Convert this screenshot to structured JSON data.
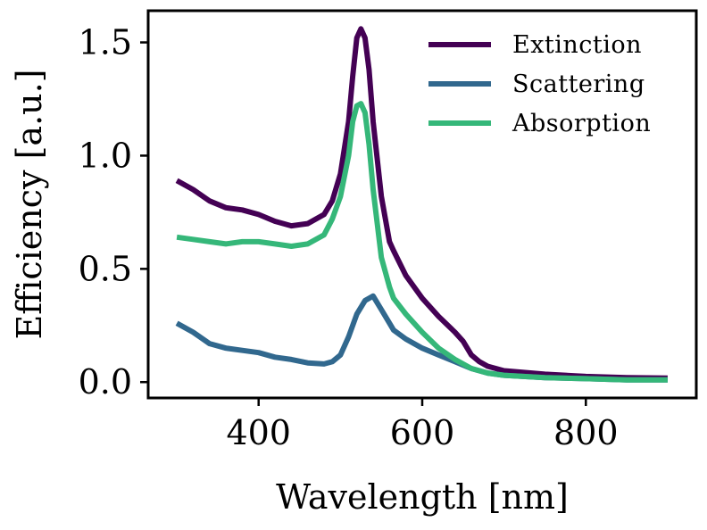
{
  "chart_data": {
    "type": "line",
    "title": "",
    "xlabel": "Wavelength [nm]",
    "ylabel": "Efficiency [a.u.]",
    "xlim": [
      265,
      935
    ],
    "ylim": [
      -0.07,
      1.64
    ],
    "xticks": [
      400,
      600,
      800
    ],
    "yticks": [
      0.0,
      0.5,
      1.0,
      1.5
    ],
    "xtick_labels": [
      "400",
      "600",
      "800"
    ],
    "ytick_labels": [
      "0.0",
      "0.5",
      "1.0",
      "1.5"
    ],
    "grid": false,
    "legend": {
      "position": "top-right",
      "frame": false
    },
    "series": [
      {
        "name": "Extinction",
        "color": "#440154",
        "x": [
          300,
          320,
          340,
          360,
          380,
          400,
          420,
          440,
          460,
          480,
          490,
          500,
          510,
          515,
          520,
          525,
          530,
          535,
          540,
          550,
          560,
          565,
          580,
          600,
          620,
          640,
          650,
          660,
          670,
          680,
          700,
          750,
          800,
          850,
          900
        ],
        "y": [
          0.89,
          0.85,
          0.8,
          0.77,
          0.76,
          0.74,
          0.71,
          0.69,
          0.7,
          0.74,
          0.8,
          0.92,
          1.15,
          1.35,
          1.52,
          1.56,
          1.52,
          1.38,
          1.15,
          0.82,
          0.62,
          0.58,
          0.47,
          0.37,
          0.29,
          0.22,
          0.18,
          0.12,
          0.09,
          0.07,
          0.05,
          0.035,
          0.025,
          0.02,
          0.018
        ]
      },
      {
        "name": "Scattering",
        "color": "#31688e",
        "x": [
          300,
          320,
          340,
          360,
          380,
          400,
          420,
          440,
          460,
          480,
          490,
          500,
          510,
          520,
          530,
          540,
          550,
          560,
          565,
          580,
          600,
          620,
          640,
          660,
          680,
          700,
          750,
          800,
          850,
          900
        ],
        "y": [
          0.26,
          0.22,
          0.17,
          0.15,
          0.14,
          0.13,
          0.11,
          0.1,
          0.085,
          0.08,
          0.09,
          0.12,
          0.2,
          0.3,
          0.36,
          0.38,
          0.32,
          0.26,
          0.23,
          0.19,
          0.15,
          0.12,
          0.09,
          0.06,
          0.04,
          0.03,
          0.02,
          0.015,
          0.01,
          0.01
        ]
      },
      {
        "name": "Absorption",
        "color": "#35b779",
        "x": [
          300,
          320,
          340,
          360,
          380,
          400,
          420,
          440,
          460,
          480,
          490,
          500,
          510,
          515,
          520,
          525,
          530,
          535,
          540,
          550,
          560,
          565,
          580,
          600,
          620,
          640,
          660,
          680,
          700,
          750,
          800,
          850,
          900
        ],
        "y": [
          0.64,
          0.63,
          0.62,
          0.61,
          0.62,
          0.62,
          0.61,
          0.6,
          0.61,
          0.65,
          0.72,
          0.82,
          1.0,
          1.15,
          1.22,
          1.23,
          1.19,
          1.05,
          0.85,
          0.55,
          0.42,
          0.37,
          0.3,
          0.22,
          0.15,
          0.1,
          0.06,
          0.04,
          0.03,
          0.02,
          0.015,
          0.01,
          0.01
        ]
      }
    ]
  }
}
